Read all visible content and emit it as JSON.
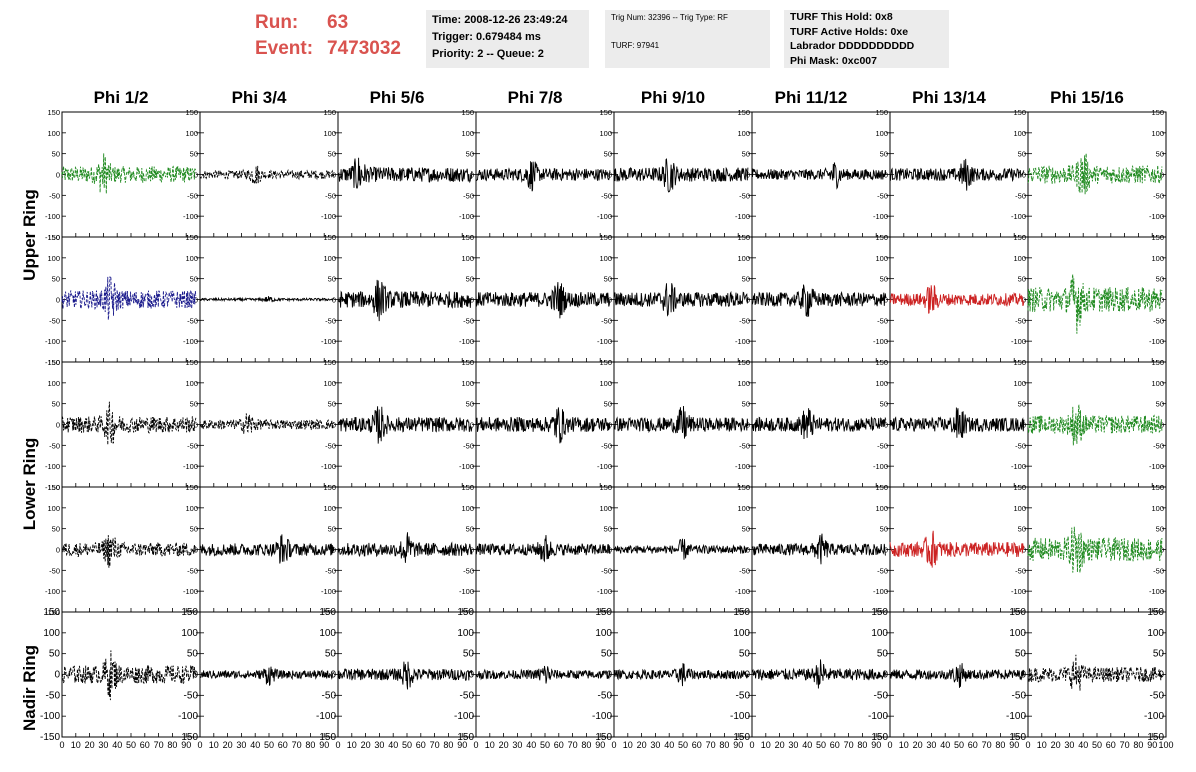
{
  "header": {
    "run_label": "Run:",
    "run_value": "63",
    "event_label": "Event:",
    "event_value": "7473032",
    "time_box": {
      "line1": "Time: 2008-12-26 23:49:24",
      "line2": "Trigger: 0.679484 ms",
      "line3": "Priority: 2 -- Queue: 2"
    },
    "trig_box": {
      "line1": "Trig Num: 32396 -- Trig Type: RF",
      "line2": "TURF: 97941"
    },
    "turf_box": {
      "line1": "TURF This Hold: 0x8",
      "line2": "TURF Active Holds: 0xe",
      "line3": "Labrador DDDDDDDDDD",
      "line4": "Phi Mask: 0xc007"
    }
  },
  "columns": [
    "Phi 1/2",
    "Phi 3/4",
    "Phi 5/6",
    "Phi 7/8",
    "Phi 9/10",
    "Phi 11/12",
    "Phi 13/14",
    "Phi 15/16"
  ],
  "ring_labels": [
    "Upper Ring",
    "Lower Ring",
    "Nadir Ring"
  ],
  "colors": {
    "black": "#000000",
    "green": "#1f8a1f",
    "blue": "#1a1a8c",
    "red": "#cc2222",
    "header_red": "#d9534f",
    "info_bg": "#ececec"
  },
  "chart_data": {
    "type": "line",
    "description_rows": 5,
    "description_cols": 8,
    "xlim": [
      0,
      100
    ],
    "ylim": [
      -150,
      150
    ],
    "y_ticks": [
      -150,
      -100,
      -50,
      0,
      50,
      100,
      150
    ],
    "x_ticks": [
      0,
      10,
      20,
      30,
      40,
      50,
      60,
      70,
      80,
      90,
      100
    ],
    "x_tick_labels_bottom": "0 10 20 30 40 50 60 70 80 90 100",
    "trace_x_range": [
      0,
      97
    ],
    "panels": [
      [
        {
          "color": "green",
          "amp": 20,
          "peak": 30,
          "dashed": true
        },
        {
          "color": "black",
          "amp": 10,
          "peak": 40,
          "dashed": true
        },
        {
          "color": "black",
          "amp": 18,
          "peak": 15,
          "dashed": false
        },
        {
          "color": "black",
          "amp": 15,
          "peak": 40,
          "dashed": false
        },
        {
          "color": "black",
          "amp": 17,
          "peak": 40,
          "dashed": false
        },
        {
          "color": "black",
          "amp": 13,
          "peak": 60,
          "dashed": false
        },
        {
          "color": "black",
          "amp": 15,
          "peak": 55,
          "dashed": false
        },
        {
          "color": "green",
          "amp": 22,
          "peak": 40,
          "dashed": true
        }
      ],
      [
        {
          "color": "blue",
          "amp": 22,
          "peak": 35,
          "dashed": true
        },
        {
          "color": "black",
          "amp": 3,
          "peak": 50,
          "dashed": false
        },
        {
          "color": "black",
          "amp": 20,
          "peak": 30,
          "dashed": false
        },
        {
          "color": "black",
          "amp": 18,
          "peak": 60,
          "dashed": false
        },
        {
          "color": "black",
          "amp": 18,
          "peak": 40,
          "dashed": false
        },
        {
          "color": "black",
          "amp": 17,
          "peak": 40,
          "dashed": false
        },
        {
          "color": "red",
          "amp": 15,
          "peak": 30,
          "dashed": false
        },
        {
          "color": "green",
          "amp": 30,
          "peak": 35,
          "dashed": true
        }
      ],
      [
        {
          "color": "black",
          "amp": 20,
          "peak": 35,
          "dashed": true
        },
        {
          "color": "black",
          "amp": 12,
          "peak": 35,
          "dashed": true
        },
        {
          "color": "black",
          "amp": 18,
          "peak": 30,
          "dashed": false
        },
        {
          "color": "black",
          "amp": 18,
          "peak": 60,
          "dashed": false
        },
        {
          "color": "black",
          "amp": 17,
          "peak": 50,
          "dashed": false
        },
        {
          "color": "black",
          "amp": 17,
          "peak": 40,
          "dashed": false
        },
        {
          "color": "black",
          "amp": 17,
          "peak": 50,
          "dashed": false
        },
        {
          "color": "green",
          "amp": 22,
          "peak": 35,
          "dashed": true
        }
      ],
      [
        {
          "color": "black",
          "amp": 17,
          "peak": 35,
          "dashed": true
        },
        {
          "color": "black",
          "amp": 15,
          "peak": 60,
          "dashed": false
        },
        {
          "color": "black",
          "amp": 16,
          "peak": 50,
          "dashed": false
        },
        {
          "color": "black",
          "amp": 14,
          "peak": 50,
          "dashed": false
        },
        {
          "color": "black",
          "amp": 10,
          "peak": 50,
          "dashed": false
        },
        {
          "color": "black",
          "amp": 14,
          "peak": 50,
          "dashed": false
        },
        {
          "color": "red",
          "amp": 18,
          "peak": 30,
          "dashed": false
        },
        {
          "color": "green",
          "amp": 28,
          "peak": 35,
          "dashed": true
        }
      ],
      [
        {
          "color": "black",
          "amp": 22,
          "peak": 35,
          "dashed": true
        },
        {
          "color": "black",
          "amp": 10,
          "peak": 50,
          "dashed": false
        },
        {
          "color": "black",
          "amp": 14,
          "peak": 50,
          "dashed": false
        },
        {
          "color": "black",
          "amp": 11,
          "peak": 50,
          "dashed": false
        },
        {
          "color": "black",
          "amp": 11,
          "peak": 50,
          "dashed": false
        },
        {
          "color": "black",
          "amp": 14,
          "peak": 50,
          "dashed": false
        },
        {
          "color": "black",
          "amp": 12,
          "peak": 50,
          "dashed": false
        },
        {
          "color": "black",
          "amp": 18,
          "peak": 35,
          "dashed": true
        }
      ]
    ]
  }
}
